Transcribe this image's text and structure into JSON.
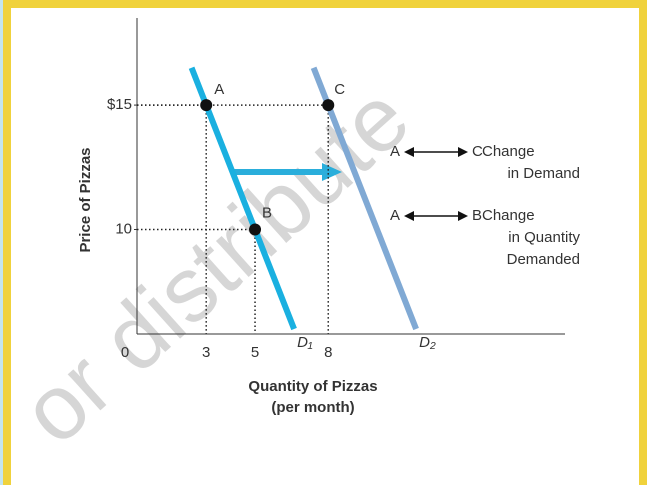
{
  "chart_data": {
    "type": "line",
    "watermark": "or distribute",
    "y_label": "Price of Pizzas",
    "x_label": [
      "Quantity of Pizzas",
      "(per month)"
    ],
    "xlim": [
      0,
      17.7
    ],
    "xticks": [
      0,
      3,
      5,
      8
    ],
    "ylim": [
      5.8,
      18.5
    ],
    "yticks": [
      10,
      {
        "value": 15,
        "label": "$15"
      }
    ],
    "series": [
      {
        "name": "D₁",
        "color": "#1ab0e0",
        "x": [
          2.4,
          6.6
        ],
        "values": [
          16.5,
          6
        ]
      },
      {
        "name": "D₂",
        "color": "#80a9d4",
        "x": [
          7.4,
          11.6
        ],
        "values": [
          16.5,
          6
        ]
      }
    ],
    "points": [
      {
        "label": "A",
        "x": 3,
        "y": 15
      },
      {
        "label": "B",
        "x": 5,
        "y": 10
      },
      {
        "label": "C",
        "x": 8,
        "y": 15
      }
    ],
    "annotations": [
      {
        "from": "A",
        "to": "C",
        "text": [
          "Change",
          "in Demand"
        ]
      },
      {
        "from": "A",
        "to": "B",
        "text": [
          "Change",
          "in Quantity",
          "Demanded"
        ]
      }
    ]
  }
}
